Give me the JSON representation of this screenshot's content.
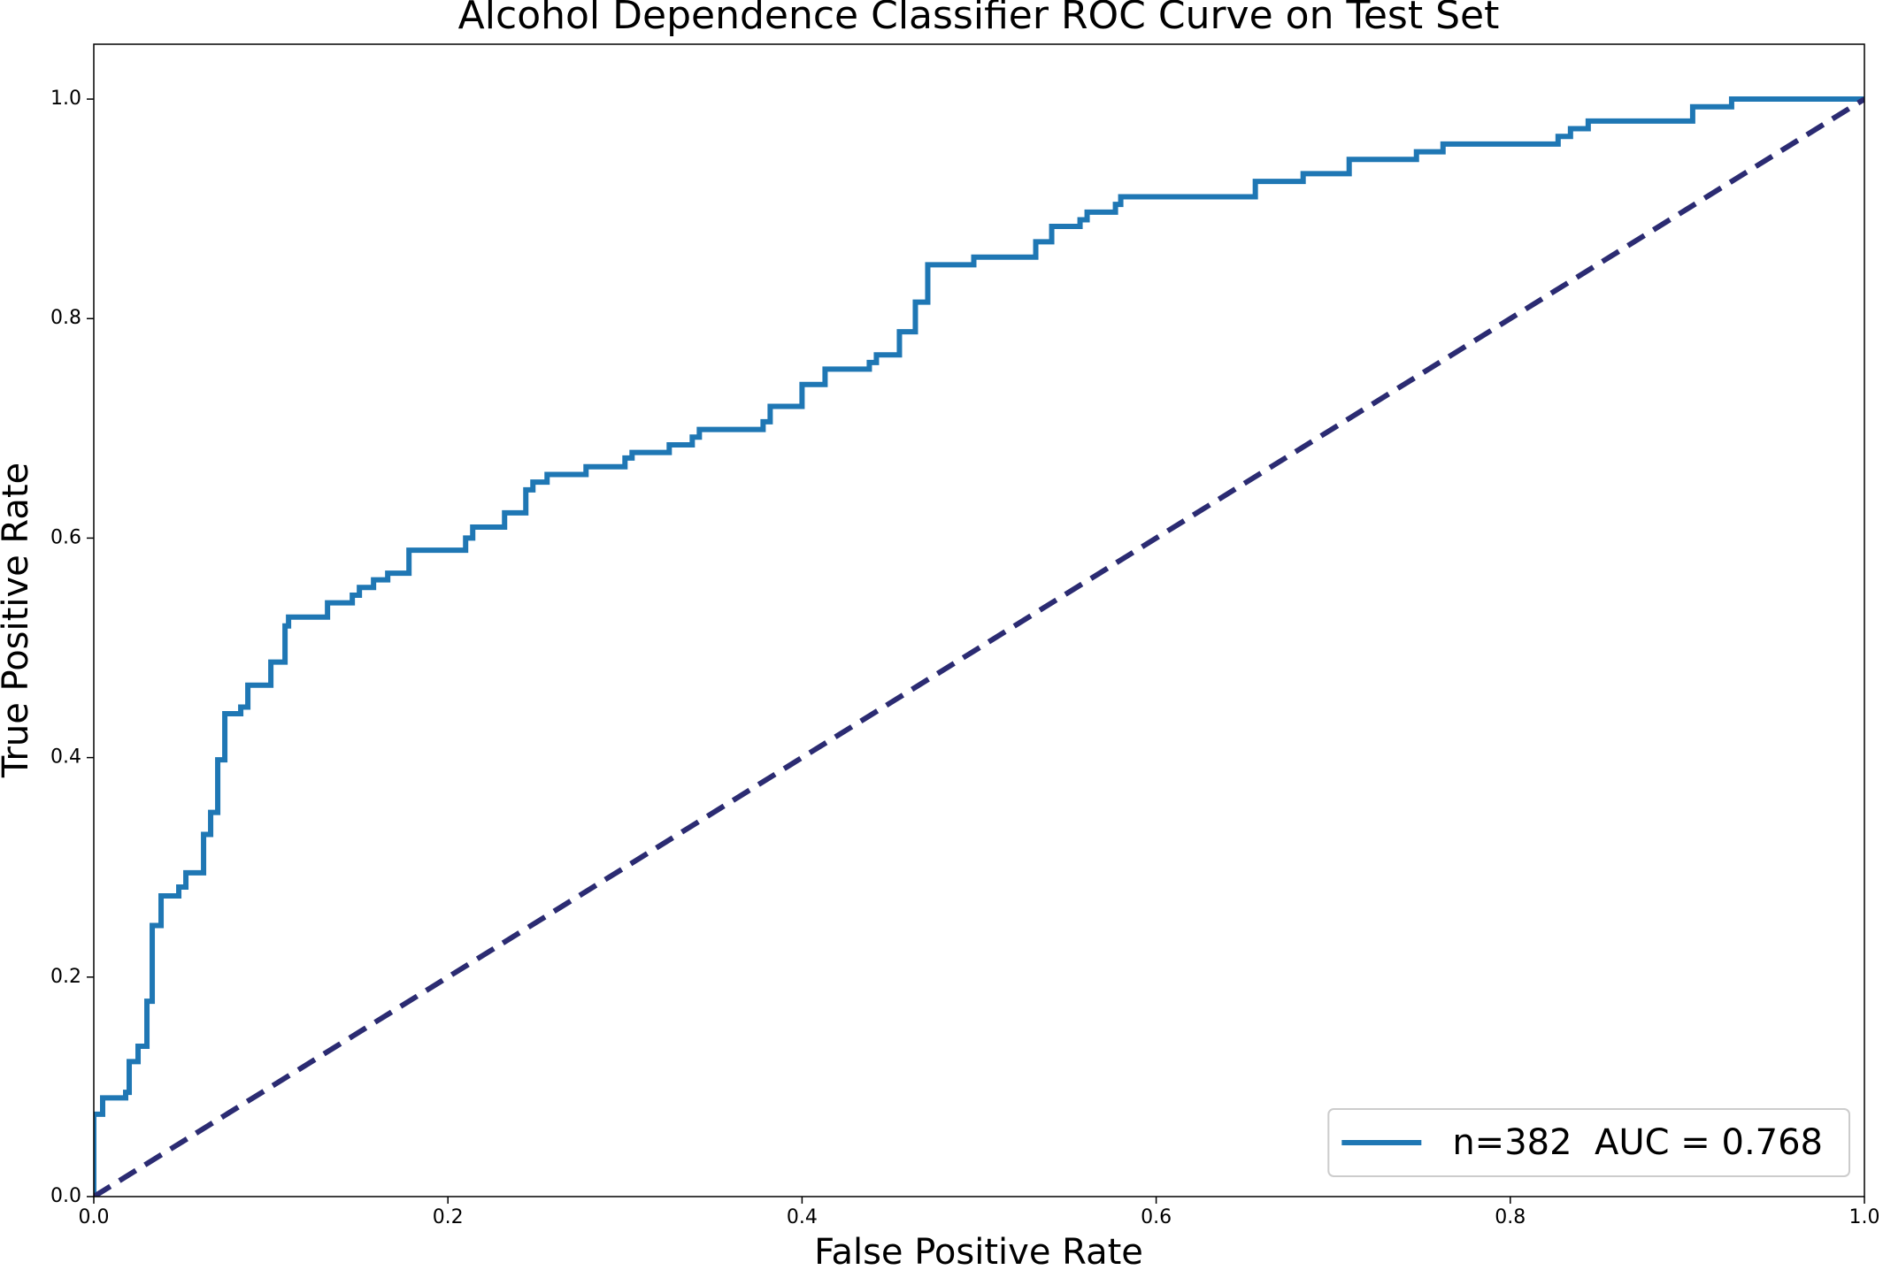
{
  "chart_data": {
    "type": "line",
    "title": "Alcohol Dependence Classifier ROC Curve on Test Set",
    "xlabel": "False Positive Rate",
    "ylabel": "True Positive Rate",
    "xlim": [
      0,
      1
    ],
    "ylim": [
      0,
      1.05
    ],
    "xticks": [
      {
        "value": 0,
        "label": "0.0"
      },
      {
        "value": 0.2,
        "label": "0.2"
      },
      {
        "value": 0.4,
        "label": "0.4"
      },
      {
        "value": 0.6,
        "label": "0.6"
      },
      {
        "value": 0.8,
        "label": "0.8"
      },
      {
        "value": 1,
        "label": "1.0"
      }
    ],
    "yticks": [
      {
        "value": 0,
        "label": "0.0"
      },
      {
        "value": 0.2,
        "label": "0.2"
      },
      {
        "value": 0.4,
        "label": "0.4"
      },
      {
        "value": 0.6,
        "label": "0.6"
      },
      {
        "value": 0.8,
        "label": "0.8"
      },
      {
        "value": 1,
        "label": "1.0"
      }
    ],
    "legend": "lower right",
    "series": [
      {
        "name": "n=382  AUC = 0.768",
        "color": "#1f77b4",
        "dash": false,
        "x": [
          0,
          0,
          0.005,
          0.005,
          0.018,
          0.018,
          0.02,
          0.02,
          0.025,
          0.025,
          0.03,
          0.03,
          0.033,
          0.033,
          0.038,
          0.038,
          0.048,
          0.048,
          0.052,
          0.052,
          0.062,
          0.062,
          0.066,
          0.066,
          0.07,
          0.07,
          0.074,
          0.074,
          0.083,
          0.083,
          0.087,
          0.087,
          0.1,
          0.1,
          0.108,
          0.108,
          0.11,
          0.11,
          0.132,
          0.132,
          0.146,
          0.146,
          0.15,
          0.15,
          0.158,
          0.158,
          0.166,
          0.166,
          0.178,
          0.178,
          0.21,
          0.21,
          0.214,
          0.214,
          0.232,
          0.232,
          0.244,
          0.244,
          0.248,
          0.248,
          0.256,
          0.256,
          0.278,
          0.278,
          0.3,
          0.3,
          0.304,
          0.304,
          0.325,
          0.325,
          0.338,
          0.338,
          0.342,
          0.342,
          0.378,
          0.378,
          0.382,
          0.382,
          0.4,
          0.4,
          0.413,
          0.413,
          0.438,
          0.438,
          0.442,
          0.442,
          0.455,
          0.455,
          0.464,
          0.464,
          0.471,
          0.471,
          0.497,
          0.497,
          0.532,
          0.532,
          0.541,
          0.541,
          0.557,
          0.557,
          0.561,
          0.561,
          0.577,
          0.577,
          0.58,
          0.58,
          0.656,
          0.656,
          0.683,
          0.683,
          0.709,
          0.709,
          0.747,
          0.747,
          0.762,
          0.762,
          0.827,
          0.827,
          0.834,
          0.834,
          0.844,
          0.844,
          0.903,
          0.903,
          0.925,
          0.925,
          1
        ],
        "y": [
          0,
          0.075,
          0.075,
          0.09,
          0.09,
          0.095,
          0.095,
          0.123,
          0.123,
          0.137,
          0.137,
          0.178,
          0.178,
          0.247,
          0.247,
          0.274,
          0.274,
          0.282,
          0.282,
          0.295,
          0.295,
          0.33,
          0.33,
          0.35,
          0.35,
          0.398,
          0.398,
          0.44,
          0.44,
          0.446,
          0.446,
          0.466,
          0.466,
          0.487,
          0.487,
          0.52,
          0.52,
          0.528,
          0.528,
          0.541,
          0.541,
          0.548,
          0.548,
          0.555,
          0.555,
          0.562,
          0.562,
          0.568,
          0.568,
          0.589,
          0.589,
          0.6,
          0.6,
          0.61,
          0.61,
          0.623,
          0.623,
          0.644,
          0.644,
          0.651,
          0.651,
          0.658,
          0.658,
          0.665,
          0.665,
          0.673,
          0.673,
          0.678,
          0.678,
          0.685,
          0.685,
          0.692,
          0.692,
          0.699,
          0.699,
          0.706,
          0.706,
          0.72,
          0.72,
          0.74,
          0.74,
          0.754,
          0.754,
          0.76,
          0.76,
          0.767,
          0.767,
          0.788,
          0.788,
          0.815,
          0.815,
          0.849,
          0.849,
          0.856,
          0.856,
          0.87,
          0.87,
          0.884,
          0.884,
          0.89,
          0.89,
          0.897,
          0.897,
          0.904,
          0.904,
          0.911,
          0.911,
          0.925,
          0.925,
          0.932,
          0.932,
          0.945,
          0.945,
          0.952,
          0.952,
          0.959,
          0.959,
          0.966,
          0.966,
          0.973,
          0.973,
          0.98,
          0.98,
          0.993,
          0.993,
          1,
          1
        ]
      },
      {
        "color": "#2b2b72",
        "dash": true,
        "x": [
          0,
          1
        ],
        "y": [
          0,
          1
        ]
      }
    ]
  }
}
